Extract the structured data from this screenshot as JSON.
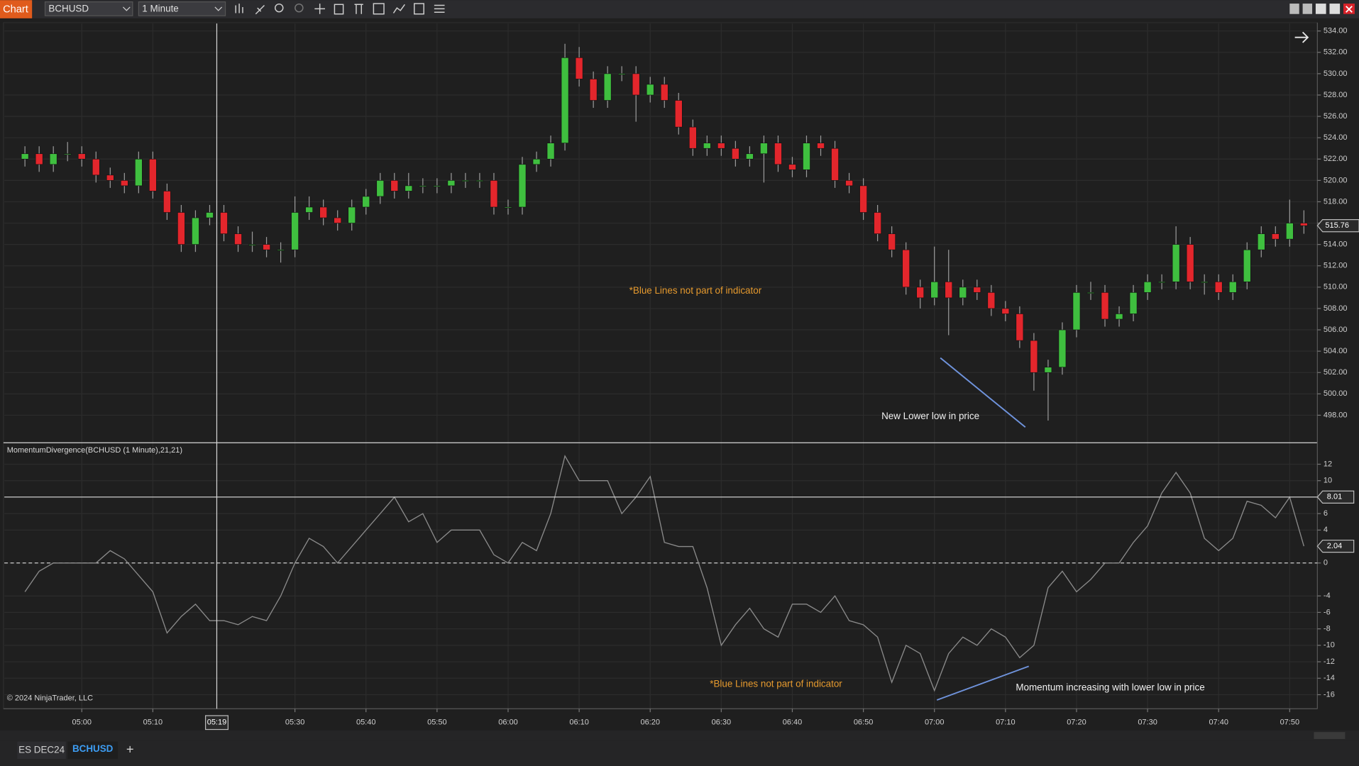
{
  "toolbar": {
    "app": "Chart",
    "instrument": "BCHUSD",
    "interval": "1 Minute"
  },
  "tabs": [
    "ES DEC24",
    "BCHUSD"
  ],
  "chart_data": [
    {
      "type": "candlestick",
      "x": [
        292,
        294,
        296,
        298,
        300,
        302,
        304,
        306,
        308,
        310,
        312,
        314,
        316,
        318,
        320,
        322,
        324,
        326,
        328,
        330,
        332,
        334,
        336,
        338,
        340,
        342,
        344,
        346,
        348,
        350,
        352,
        354,
        356,
        358,
        360,
        362,
        364,
        366,
        368,
        370,
        372,
        374,
        376,
        378,
        380,
        382,
        384,
        386,
        388,
        390,
        392,
        394,
        396,
        398,
        400,
        402,
        404,
        406,
        408,
        410,
        412,
        414,
        416,
        418,
        420,
        422,
        424,
        426,
        428,
        430,
        432,
        434,
        436,
        438,
        440,
        442,
        444,
        446,
        448,
        450,
        452,
        454,
        456,
        458,
        460,
        462,
        464,
        466,
        468,
        470,
        472
      ],
      "open": [
        522,
        522.5,
        521.5,
        522.5,
        522.5,
        522,
        520.5,
        520,
        519.5,
        522,
        519,
        517,
        514,
        516.5,
        517,
        515,
        514,
        514,
        513.5,
        513.5,
        517,
        517.5,
        516.5,
        516,
        517.5,
        518.5,
        520,
        519,
        519.5,
        519.5,
        519.5,
        520,
        520,
        520,
        517.5,
        517.5,
        521.5,
        522,
        523.5,
        531.5,
        529.5,
        527.5,
        530,
        530,
        528,
        529,
        527.5,
        525,
        523,
        523.5,
        523,
        522,
        522.5,
        523.5,
        521.5,
        521,
        523.5,
        523,
        520,
        519.5,
        517,
        515,
        513.5,
        510,
        509,
        510.5,
        509,
        510,
        509.5,
        508,
        507.5,
        505,
        502,
        502.5,
        506,
        509.5,
        509.5,
        507,
        507.5,
        509.5,
        510.5,
        510.5,
        514,
        510.5,
        510.5,
        509.5,
        510.5,
        513.5,
        515,
        514.5,
        516
      ],
      "high": [
        523.2,
        523.2,
        523.2,
        523.6,
        523.2,
        522.7,
        521.2,
        520.7,
        522.7,
        522.7,
        519.7,
        517.7,
        517.2,
        517.7,
        517.7,
        515.7,
        515.2,
        514.7,
        514.2,
        518.5,
        518.5,
        518.2,
        517.2,
        518.2,
        519.2,
        520.7,
        520.7,
        520.7,
        520.2,
        520.2,
        520.7,
        520.7,
        520.7,
        520.7,
        518.2,
        522.2,
        522.7,
        524.2,
        532.8,
        532.5,
        530.2,
        530.7,
        530.7,
        530.7,
        529.7,
        529.7,
        528.2,
        525.7,
        524.2,
        524.2,
        523.7,
        523.2,
        524.2,
        524.2,
        522.2,
        524.2,
        524.2,
        523.7,
        520.7,
        520.2,
        517.7,
        515.7,
        514.2,
        510.7,
        513.8,
        513.5,
        510.7,
        510.7,
        510.2,
        508.7,
        508.2,
        505.7,
        503.2,
        506.7,
        510.2,
        510.5,
        510.2,
        508.2,
        510.2,
        511.2,
        511.2,
        515.7,
        514.7,
        511.2,
        511.2,
        511.2,
        514.2,
        515.7,
        515.7,
        518.2,
        517.2
      ],
      "low": [
        521.3,
        520.8,
        520.8,
        521.8,
        521.3,
        519.8,
        519.3,
        518.8,
        518.8,
        518.3,
        516.3,
        513.3,
        513.3,
        515.8,
        514.3,
        513.3,
        513.3,
        512.8,
        512.3,
        512.8,
        516.3,
        515.8,
        515.3,
        515.3,
        516.8,
        517.8,
        518.3,
        518.3,
        518.8,
        518.8,
        518.8,
        519.3,
        519.3,
        516.8,
        516.8,
        516.8,
        520.8,
        521.3,
        522.8,
        528.8,
        526.8,
        526.8,
        529.3,
        525.5,
        527.3,
        526.8,
        524.3,
        522.3,
        522.3,
        522.3,
        521.3,
        521.3,
        519.8,
        520.8,
        520.3,
        520.3,
        522.3,
        519.3,
        518.8,
        516.3,
        514.3,
        512.8,
        509.3,
        508.0,
        508.3,
        505.5,
        508.3,
        508.8,
        507.3,
        506.8,
        504.3,
        500.3,
        497.5,
        501.8,
        505.3,
        508.8,
        506.3,
        506.3,
        506.8,
        508.8,
        509.8,
        509.8,
        509.8,
        509.3,
        508.8,
        508.8,
        509.8,
        512.8,
        513.8,
        513.8,
        515.0
      ],
      "close": [
        522.5,
        521.5,
        522.5,
        522.5,
        522,
        520.5,
        520,
        519.5,
        522,
        519,
        517,
        514,
        516.5,
        517,
        515,
        514,
        514,
        513.5,
        513.5,
        517,
        517.5,
        516.5,
        516,
        517.5,
        518.5,
        520,
        519,
        519.5,
        519.5,
        519.5,
        520,
        520,
        520,
        517.5,
        517.5,
        521.5,
        522,
        523.5,
        531.5,
        529.5,
        527.5,
        530,
        530,
        528,
        529,
        527.5,
        525,
        523,
        523.5,
        523,
        522,
        522.5,
        523.5,
        521.5,
        521,
        523.5,
        523,
        520,
        519.5,
        517,
        515,
        513.5,
        510,
        509,
        510.5,
        509,
        510,
        509.5,
        508,
        507.5,
        505,
        502,
        502.5,
        506,
        509.5,
        509.5,
        507,
        507.5,
        509.5,
        510.5,
        510.5,
        514,
        510.5,
        510.5,
        509.5,
        510.5,
        513.5,
        515,
        514.5,
        516,
        515.76
      ],
      "up_color": "#3fbf3f",
      "down_color": "#e3262c",
      "xlim": [
        289.1,
        473.9
      ],
      "ylim": [
        495.5,
        534.7
      ],
      "yticks": [
        {
          "value": 498,
          "label": "498.00"
        },
        {
          "value": 500,
          "label": "500.00"
        },
        {
          "value": 502,
          "label": "502.00"
        },
        {
          "value": 504,
          "label": "504.00"
        },
        {
          "value": 506,
          "label": "506.00"
        },
        {
          "value": 508,
          "label": "508.00"
        },
        {
          "value": 510,
          "label": "510.00"
        },
        {
          "value": 512,
          "label": "512.00"
        },
        {
          "value": 514,
          "label": "514.00"
        },
        {
          "value": 516,
          "label": "516.00"
        },
        {
          "value": 518,
          "label": "518.00"
        },
        {
          "value": 520,
          "label": "520.00"
        },
        {
          "value": 522,
          "label": "522.00"
        },
        {
          "value": 524,
          "label": "524.00"
        },
        {
          "value": 526,
          "label": "526.00"
        },
        {
          "value": 528,
          "label": "528.00"
        },
        {
          "value": 530,
          "label": "530.00"
        },
        {
          "value": 532,
          "label": "532.00"
        },
        {
          "value": 534,
          "label": "534.00"
        }
      ],
      "grid": true,
      "annotations": [
        "*Blue Lines not part of indicator",
        "New Lower low in price"
      ]
    },
    {
      "type": "line",
      "title": "MomentumDivergence(BCHUSD (1 Minute),21,21)",
      "x": [
        292,
        294,
        296,
        298,
        300,
        302,
        304,
        306,
        308,
        310,
        312,
        314,
        316,
        318,
        320,
        322,
        324,
        326,
        328,
        330,
        332,
        334,
        336,
        338,
        340,
        342,
        344,
        346,
        348,
        350,
        352,
        354,
        356,
        358,
        360,
        362,
        364,
        366,
        368,
        370,
        372,
        374,
        376,
        378,
        380,
        382,
        384,
        386,
        388,
        390,
        392,
        394,
        396,
        398,
        400,
        402,
        404,
        406,
        408,
        410,
        412,
        414,
        416,
        418,
        420,
        422,
        424,
        426,
        428,
        430,
        432,
        434,
        436,
        438,
        440,
        442,
        444,
        446,
        448,
        450,
        452,
        454,
        456,
        458,
        460,
        462,
        464,
        466,
        468,
        470,
        472
      ],
      "series": [
        {
          "color": "#8a8a8a",
          "values": [
            -3.5,
            -1,
            0,
            0,
            0,
            0,
            1.5,
            0.5,
            -1.5,
            -3.5,
            -8.5,
            -6.5,
            -5,
            -7,
            -7,
            -7.5,
            -6.5,
            -7,
            -4,
            0,
            3,
            2,
            0,
            2,
            4,
            6,
            8,
            5,
            6,
            2.5,
            4,
            4,
            4,
            1,
            0,
            2.5,
            1.5,
            6,
            13,
            10,
            10,
            10,
            6,
            8,
            10.5,
            2.5,
            2,
            2,
            -3,
            -10,
            -7.5,
            -5.5,
            -8,
            -9,
            -5,
            -5,
            -6,
            -4,
            -7,
            -7.5,
            -9,
            -14.5,
            -10,
            -11,
            -15.5,
            -11,
            -9,
            -10,
            -8,
            -9,
            -11.5,
            -10,
            -3,
            -1,
            -3.5,
            -2,
            0,
            0,
            2.5,
            4.5,
            8.5,
            11,
            8.5,
            3,
            1.5,
            3,
            7.5,
            7,
            5.5,
            8,
            2.04
          ]
        }
      ],
      "hline": 8.01,
      "xlim": [
        289.1,
        473.9
      ],
      "ylim": [
        -17.7,
        14.5
      ],
      "yticks": [
        12,
        10,
        6,
        4,
        0,
        -4,
        -6,
        -8,
        -10,
        -12,
        -14,
        -16
      ],
      "xticks": [
        {
          "value": 300,
          "label": "05:00"
        },
        {
          "value": 310,
          "label": "05:10"
        },
        {
          "value": 330,
          "label": "05:30"
        },
        {
          "value": 340,
          "label": "05:40"
        },
        {
          "value": 350,
          "label": "05:50"
        },
        {
          "value": 360,
          "label": "06:00"
        },
        {
          "value": 370,
          "label": "06:10"
        },
        {
          "value": 380,
          "label": "06:20"
        },
        {
          "value": 390,
          "label": "06:30"
        },
        {
          "value": 400,
          "label": "06:40"
        },
        {
          "value": 410,
          "label": "06:50"
        },
        {
          "value": 420,
          "label": "07:00"
        },
        {
          "value": 430,
          "label": "07:10"
        },
        {
          "value": 440,
          "label": "07:20"
        },
        {
          "value": 450,
          "label": "07:30"
        },
        {
          "value": 460,
          "label": "07:40"
        },
        {
          "value": 470,
          "label": "07:50"
        }
      ],
      "cursor": {
        "x": 319,
        "label": "05:19"
      },
      "grid": true,
      "copyright": "© 2024 NinjaTrader, LLC",
      "annotations": [
        "*Blue Lines not part of indicator",
        "Momentum increasing with lower low in price"
      ]
    }
  ]
}
